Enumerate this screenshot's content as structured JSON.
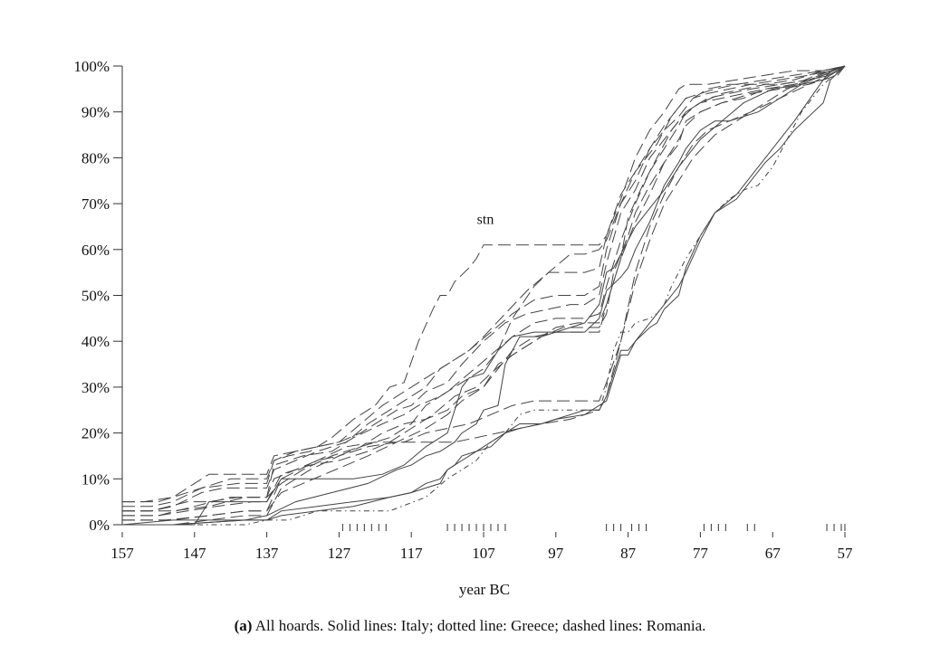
{
  "chart_data": {
    "type": "line",
    "xlabel": "year BC",
    "ylabel": "",
    "xlim": [
      157,
      56
    ],
    "ylim": [
      0,
      100
    ],
    "x_ticks": [
      "157",
      "147",
      "137",
      "127",
      "117",
      "107",
      "97",
      "87",
      "77",
      "67",
      "57"
    ],
    "y_ticks": [
      "0%",
      "10%",
      "20%",
      "30%",
      "40%",
      "50%",
      "60%",
      "70%",
      "80%",
      "90%",
      "100%"
    ],
    "annotations": [
      {
        "text": "stn",
        "x": 107,
        "y": 64
      }
    ],
    "rug_years": [
      126.5,
      125.5,
      124.5,
      123.5,
      122.5,
      121.5,
      120.5,
      112,
      111,
      110,
      109,
      108,
      107,
      106,
      105,
      104,
      90,
      89,
      88,
      86.5,
      85.5,
      84.5,
      76.5,
      75.5,
      74.5,
      73.5,
      70.5,
      69.5,
      59.5,
      58.5,
      57.5,
      57
    ],
    "series": [
      {
        "style": "solid",
        "x": [
          157,
          150,
          140,
          137,
          135,
          130,
          125,
          120,
          117,
          115,
          113,
          112,
          111,
          110,
          108,
          106,
          104,
          102,
          99,
          97,
          93,
          91,
          90,
          88,
          87,
          86,
          84,
          83,
          82,
          80,
          79,
          77,
          75,
          72,
          68,
          66,
          64,
          60,
          59,
          57
        ],
        "y": [
          0,
          0,
          1,
          1,
          3,
          4,
          5,
          6,
          7,
          8,
          9,
          12,
          13,
          15,
          16,
          18,
          20,
          22,
          22,
          23,
          24,
          26,
          27,
          37,
          37,
          40,
          44,
          46,
          48,
          52,
          55,
          62,
          68,
          72,
          80,
          84,
          88,
          97,
          99,
          100
        ]
      },
      {
        "style": "solid",
        "x": [
          157,
          150,
          140,
          137,
          135,
          130,
          125,
          120,
          117,
          115,
          113,
          112,
          111,
          110,
          108,
          106,
          104,
          102,
          99,
          97,
          93,
          91,
          90,
          88,
          87,
          86,
          84,
          83,
          82,
          80,
          79,
          77,
          75,
          72,
          68,
          66,
          64,
          60,
          59,
          57
        ],
        "y": [
          0,
          0,
          1,
          1,
          2,
          3,
          4,
          6,
          7,
          9,
          10,
          12,
          13,
          14,
          16,
          17,
          20,
          21,
          22,
          23,
          25,
          25,
          28,
          38,
          38,
          40,
          43,
          44,
          47,
          50,
          56,
          63,
          68,
          71,
          79,
          82,
          86,
          92,
          97,
          100
        ]
      },
      {
        "style": "solid",
        "x": [
          157,
          150,
          140,
          137,
          133,
          128,
          123,
          119,
          117,
          115,
          113,
          111,
          110,
          108,
          107,
          105,
          104,
          102,
          99,
          97,
          93,
          91,
          90,
          88,
          87,
          86,
          84,
          82,
          80,
          79,
          77,
          75,
          73,
          69,
          66,
          63,
          60,
          57
        ],
        "y": [
          0,
          1,
          1,
          2,
          5,
          7,
          9,
          12,
          13,
          15,
          16,
          18,
          20,
          22,
          25,
          26,
          35,
          41,
          41,
          42,
          42,
          45,
          51,
          54,
          56,
          60,
          66,
          74,
          79,
          82,
          86,
          88,
          88,
          90,
          93,
          96,
          97,
          100
        ]
      },
      {
        "style": "solid",
        "x": [
          157,
          147,
          145,
          140,
          137,
          135,
          130,
          125,
          121,
          118,
          115,
          113,
          112,
          111,
          110,
          109,
          107,
          105,
          103,
          100,
          97,
          93,
          91,
          90,
          89,
          88,
          87,
          86,
          84,
          82,
          80,
          79,
          77,
          74,
          71,
          67,
          63,
          60,
          57
        ],
        "y": [
          0,
          0,
          5,
          5,
          5,
          10,
          10,
          10,
          11,
          13,
          17,
          19,
          20,
          25,
          30,
          32,
          33,
          38,
          41,
          42,
          42,
          44,
          48,
          55,
          56,
          59,
          62,
          65,
          69,
          73,
          78,
          80,
          84,
          88,
          92,
          95,
          96,
          98,
          100
        ]
      },
      {
        "style": "dotted",
        "x": [
          157,
          150,
          140,
          137,
          134,
          130,
          125,
          120,
          115,
          112,
          110,
          108,
          106,
          104,
          102,
          100,
          97,
          93,
          91,
          90,
          89,
          88,
          87,
          86,
          84,
          83,
          82,
          81,
          80,
          79,
          77,
          75,
          73,
          71,
          69,
          67,
          65,
          63,
          60,
          57
        ],
        "y": [
          0,
          0,
          0,
          1,
          1,
          3,
          3,
          3,
          6,
          10,
          12,
          14,
          18,
          20,
          24,
          25,
          25,
          25,
          25,
          30,
          38,
          42,
          42,
          44,
          45,
          46,
          48,
          52,
          55,
          58,
          63,
          68,
          71,
          73,
          74,
          78,
          84,
          90,
          96,
          100
        ]
      },
      {
        "style": "dashed",
        "x": [
          157,
          152,
          150,
          145,
          140,
          137,
          136,
          133,
          130,
          127,
          124,
          121,
          118,
          115,
          113,
          111,
          109,
          107,
          104,
          101,
          98,
          95,
          93,
          91,
          90,
          88,
          86,
          84,
          82,
          80,
          79,
          78,
          76,
          73,
          70,
          66,
          62,
          59,
          57
        ],
        "y": [
          5,
          5,
          6,
          11,
          11,
          11,
          15,
          16,
          17,
          18,
          22,
          26,
          29,
          32,
          34,
          36,
          38,
          41,
          46,
          51,
          55,
          55,
          55,
          56,
          63,
          72,
          77,
          82,
          87,
          91,
          93,
          93,
          95,
          96,
          96,
          96,
          97,
          98,
          100
        ]
      },
      {
        "style": "dashed",
        "x": [
          157,
          153,
          150,
          146,
          141,
          137,
          136,
          134,
          131,
          128,
          125,
          122,
          120,
          118,
          116,
          114,
          113,
          112,
          111,
          109,
          108,
          107,
          105,
          101,
          97,
          93,
          91,
          90,
          88,
          86,
          84,
          82,
          80,
          79,
          76,
          72,
          68,
          64,
          60,
          57
        ],
        "y": [
          4,
          4,
          5,
          8,
          9,
          9,
          14,
          15,
          16,
          19,
          23,
          26,
          30,
          31,
          40,
          47,
          50,
          50,
          53,
          56,
          58,
          61,
          61,
          61,
          61,
          61,
          61,
          63,
          71,
          80,
          86,
          90,
          95,
          96,
          96,
          97,
          98,
          99,
          99,
          100
        ]
      },
      {
        "style": "dashed",
        "x": [
          157,
          153,
          150,
          146,
          143,
          137,
          136,
          133,
          130,
          126,
          123,
          120,
          117,
          115,
          113,
          111,
          109,
          106,
          103,
          100,
          97,
          93,
          91,
          90,
          88,
          86,
          84,
          82,
          80,
          78,
          76,
          73,
          70,
          66,
          62,
          59,
          57
        ],
        "y": [
          3,
          3,
          4,
          7,
          8,
          8,
          12,
          14,
          16,
          18,
          22,
          25,
          28,
          30,
          34,
          36,
          38,
          42,
          46,
          49,
          50,
          50,
          52,
          60,
          70,
          75,
          82,
          86,
          89,
          93,
          94,
          95,
          96,
          97,
          98,
          99,
          100
        ]
      },
      {
        "style": "dashed",
        "x": [
          157,
          152,
          147,
          142,
          137,
          136,
          133,
          130,
          127,
          124,
          121,
          118,
          115,
          112,
          110,
          107,
          105,
          102,
          99,
          96,
          93,
          91,
          90,
          89,
          87,
          86,
          84,
          82,
          80,
          79,
          77,
          74,
          71,
          68,
          64,
          60,
          57
        ],
        "y": [
          2,
          2,
          4,
          6,
          6,
          10,
          12,
          14,
          15,
          17,
          20,
          22,
          23,
          25,
          28,
          30,
          35,
          38,
          41,
          43,
          43,
          43,
          46,
          55,
          63,
          68,
          74,
          79,
          83,
          88,
          90,
          92,
          93,
          95,
          96,
          98,
          100
        ]
      },
      {
        "style": "dashed",
        "x": [
          157,
          151,
          145,
          140,
          137,
          135,
          132,
          129,
          126,
          123,
          119,
          115,
          112,
          110,
          107,
          105,
          103,
          100,
          97,
          93,
          91,
          90,
          88,
          86,
          84,
          82,
          80,
          79,
          77,
          74,
          70,
          66,
          62,
          58,
          57
        ],
        "y": [
          1,
          1,
          2,
          3,
          3,
          7,
          9,
          11,
          13,
          15,
          18,
          21,
          24,
          27,
          30,
          34,
          38,
          41,
          42,
          42,
          42,
          48,
          58,
          66,
          72,
          79,
          84,
          87,
          90,
          92,
          94,
          95,
          96,
          98,
          100
        ]
      },
      {
        "style": "dashed",
        "x": [
          157,
          153,
          148,
          145,
          141,
          137,
          136,
          132,
          128,
          125,
          121,
          118,
          116,
          113,
          110,
          107,
          105,
          103,
          100,
          98,
          95,
          93,
          91,
          90,
          88,
          86,
          85,
          83,
          81,
          79,
          77,
          75,
          72,
          68,
          64,
          60,
          57
        ],
        "y": [
          3,
          3,
          5,
          5,
          6,
          6,
          13,
          15,
          16,
          19,
          22,
          24,
          26,
          28,
          31,
          34,
          38,
          45,
          52,
          55,
          59,
          59,
          60,
          62,
          70,
          77,
          79,
          83,
          89,
          93,
          94,
          95,
          96,
          97,
          98,
          99,
          100
        ]
      },
      {
        "style": "dashed",
        "x": [
          157,
          152,
          148,
          144,
          139,
          137,
          135,
          131,
          127,
          123,
          120,
          117,
          114,
          111,
          108,
          106,
          103,
          100,
          97,
          94,
          91,
          90,
          88,
          87,
          85,
          83,
          81,
          79,
          77,
          74,
          71,
          68,
          64,
          61,
          57
        ],
        "y": [
          2,
          2,
          3,
          4,
          5,
          5,
          11,
          13,
          14,
          16,
          18,
          21,
          24,
          28,
          30,
          33,
          37,
          40,
          43,
          44,
          44,
          48,
          58,
          67,
          74,
          80,
          86,
          90,
          92,
          93,
          94,
          95,
          96,
          98,
          100
        ]
      },
      {
        "style": "dashed",
        "x": [
          157,
          150,
          145,
          140,
          137,
          135,
          132,
          128,
          124,
          120,
          117,
          115,
          112,
          109,
          106,
          103,
          100,
          97,
          95,
          93,
          91,
          90,
          88,
          86,
          84,
          82,
          80,
          79,
          77,
          74,
          71,
          68,
          64,
          60,
          57
        ],
        "y": [
          3,
          3,
          4,
          6,
          6,
          9,
          12,
          15,
          17,
          19,
          22,
          26,
          29,
          33,
          37,
          41,
          44,
          45,
          45,
          45,
          46,
          52,
          62,
          70,
          77,
          82,
          87,
          90,
          92,
          94,
          95,
          96,
          97,
          99,
          100
        ]
      },
      {
        "style": "dashed",
        "x": [
          157,
          154,
          150,
          146,
          142,
          137,
          136,
          133,
          130,
          127,
          124,
          121,
          119,
          117,
          115,
          112,
          110,
          107,
          104,
          101,
          98,
          95,
          93,
          91,
          90,
          88,
          86,
          84,
          82,
          80,
          78,
          76,
          73,
          70,
          66,
          62,
          58,
          57
        ],
        "y": [
          5,
          5,
          6,
          8,
          10,
          10,
          14,
          16,
          17,
          18,
          20,
          23,
          25,
          26,
          29,
          31,
          35,
          40,
          44,
          46,
          47,
          48,
          48,
          50,
          57,
          68,
          73,
          80,
          84,
          88,
          91,
          93,
          94,
          95,
          96,
          97,
          99,
          100
        ]
      },
      {
        "style": "dashed",
        "x": [
          157,
          150,
          145,
          140,
          137,
          135,
          130,
          126,
          122,
          118,
          115,
          112,
          109,
          106,
          103,
          100,
          97,
          93,
          91,
          90,
          88,
          86,
          84,
          82,
          80,
          78,
          75,
          72,
          68,
          65,
          62,
          59,
          57
        ],
        "y": [
          1,
          1,
          2,
          3,
          3,
          10,
          14,
          17,
          18,
          18,
          20,
          21,
          22,
          24,
          26,
          27,
          27,
          27,
          27,
          31,
          40,
          53,
          62,
          70,
          75,
          80,
          85,
          88,
          92,
          95,
          97,
          99,
          100
        ]
      },
      {
        "style": "dashed",
        "x": [
          157,
          150,
          145,
          140,
          137,
          135,
          131,
          127,
          123,
          119,
          115,
          111,
          108,
          105,
          102,
          99,
          95,
          93,
          91,
          90,
          88,
          86,
          84,
          82,
          80,
          78,
          76,
          73,
          70,
          66,
          62,
          58,
          57
        ],
        "y": [
          0,
          0,
          1,
          2,
          2,
          8,
          12,
          15,
          17,
          18,
          18,
          18,
          19,
          20,
          21,
          22,
          23,
          24,
          25,
          28,
          40,
          55,
          65,
          72,
          78,
          83,
          86,
          88,
          90,
          93,
          96,
          99,
          100
        ]
      }
    ]
  },
  "caption": {
    "label": "(a)",
    "text": " All hoards. Solid lines: Italy; dotted line: Greece; dashed lines: Romania."
  }
}
